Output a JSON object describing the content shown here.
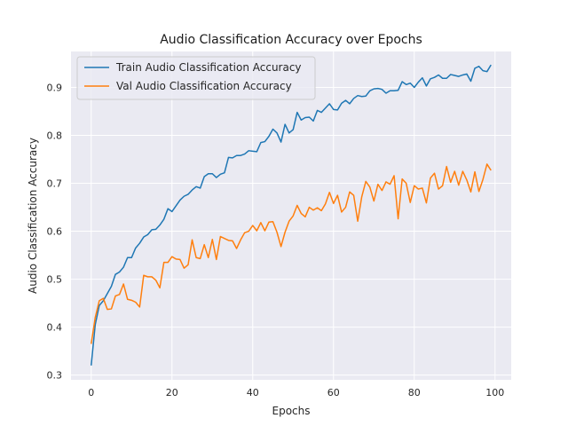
{
  "chart_data": {
    "type": "line",
    "title": "Audio Classification Accuracy over Epochs",
    "xlabel": "Epochs",
    "ylabel": "Audio Classification Accuracy",
    "xlim": [
      -5,
      104
    ],
    "ylim": [
      0.29,
      0.975
    ],
    "xticks": [
      0,
      20,
      40,
      60,
      80,
      100
    ],
    "yticks": [
      0.3,
      0.4,
      0.5,
      0.6,
      0.7,
      0.8,
      0.9
    ],
    "grid": true,
    "legend_position": "top-left",
    "x": [
      0,
      1,
      2,
      3,
      4,
      5,
      6,
      7,
      8,
      9,
      10,
      11,
      12,
      13,
      14,
      15,
      16,
      17,
      18,
      19,
      20,
      21,
      22,
      23,
      24,
      25,
      26,
      27,
      28,
      29,
      30,
      31,
      32,
      33,
      34,
      35,
      36,
      37,
      38,
      39,
      40,
      41,
      42,
      43,
      44,
      45,
      46,
      47,
      48,
      49,
      50,
      51,
      52,
      53,
      54,
      55,
      56,
      57,
      58,
      59,
      60,
      61,
      62,
      63,
      64,
      65,
      66,
      67,
      68,
      69,
      70,
      71,
      72,
      73,
      74,
      75,
      76,
      77,
      78,
      79,
      80,
      81,
      82,
      83,
      84,
      85,
      86,
      87,
      88,
      89,
      90,
      91,
      92,
      93,
      94,
      95,
      96,
      97,
      98,
      99
    ],
    "series": [
      {
        "name": "Train Audio Classification Accuracy",
        "color": "#1f77b4",
        "values": [
          0.32,
          0.405,
          0.445,
          0.455,
          0.47,
          0.485,
          0.51,
          0.515,
          0.525,
          0.545,
          0.545,
          0.565,
          0.575,
          0.588,
          0.593,
          0.603,
          0.604,
          0.613,
          0.625,
          0.647,
          0.641,
          0.653,
          0.665,
          0.673,
          0.677,
          0.686,
          0.693,
          0.69,
          0.714,
          0.72,
          0.72,
          0.712,
          0.719,
          0.722,
          0.754,
          0.753,
          0.758,
          0.758,
          0.761,
          0.768,
          0.767,
          0.766,
          0.785,
          0.787,
          0.798,
          0.813,
          0.805,
          0.786,
          0.823,
          0.805,
          0.812,
          0.848,
          0.832,
          0.837,
          0.838,
          0.83,
          0.852,
          0.848,
          0.857,
          0.866,
          0.854,
          0.853,
          0.867,
          0.873,
          0.866,
          0.877,
          0.883,
          0.881,
          0.882,
          0.893,
          0.897,
          0.898,
          0.896,
          0.888,
          0.893,
          0.893,
          0.894,
          0.912,
          0.906,
          0.909,
          0.9,
          0.911,
          0.92,
          0.903,
          0.918,
          0.921,
          0.926,
          0.919,
          0.919,
          0.927,
          0.925,
          0.923,
          0.926,
          0.928,
          0.913,
          0.94,
          0.944,
          0.935,
          0.933,
          0.947
        ]
      },
      {
        "name": "Val Audio Classification Accuracy",
        "color": "#ff7f0e",
        "values": [
          0.365,
          0.42,
          0.455,
          0.46,
          0.437,
          0.438,
          0.465,
          0.468,
          0.49,
          0.458,
          0.456,
          0.452,
          0.442,
          0.508,
          0.505,
          0.505,
          0.498,
          0.482,
          0.535,
          0.535,
          0.547,
          0.542,
          0.541,
          0.523,
          0.53,
          0.582,
          0.545,
          0.543,
          0.572,
          0.545,
          0.583,
          0.541,
          0.589,
          0.585,
          0.581,
          0.58,
          0.564,
          0.582,
          0.597,
          0.6,
          0.612,
          0.601,
          0.618,
          0.601,
          0.619,
          0.62,
          0.598,
          0.568,
          0.598,
          0.621,
          0.632,
          0.654,
          0.637,
          0.63,
          0.65,
          0.644,
          0.649,
          0.643,
          0.657,
          0.681,
          0.658,
          0.675,
          0.64,
          0.65,
          0.682,
          0.675,
          0.621,
          0.672,
          0.704,
          0.692,
          0.663,
          0.698,
          0.685,
          0.703,
          0.698,
          0.716,
          0.626,
          0.709,
          0.7,
          0.66,
          0.695,
          0.688,
          0.69,
          0.659,
          0.711,
          0.721,
          0.688,
          0.695,
          0.735,
          0.702,
          0.725,
          0.696,
          0.725,
          0.707,
          0.682,
          0.724,
          0.683,
          0.708,
          0.74,
          0.727
        ]
      }
    ]
  }
}
